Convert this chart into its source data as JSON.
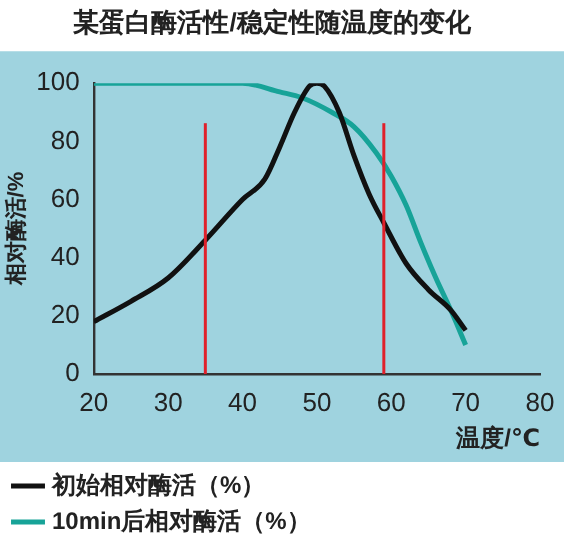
{
  "chart_data": {
    "type": "line",
    "title": "某蛋白酶活性/稳定性随温度的变化",
    "xlabel": "温度/℃",
    "ylabel": "相对酶活/%",
    "xlim": [
      20,
      80
    ],
    "xticks": [
      20,
      30,
      40,
      50,
      60,
      70,
      80
    ],
    "ylim": [
      0,
      100
    ],
    "yticks": [
      0,
      20,
      40,
      60,
      80,
      100
    ],
    "grid": false,
    "legend": "bottom",
    "marker": "none",
    "line_style": "solid",
    "series": [
      {
        "name": "初始相对酶活（%）",
        "color": "#111111",
        "x": [
          20,
          25,
          30,
          35,
          40,
          43,
          45,
          47,
          49,
          50,
          51,
          53,
          55,
          57,
          59,
          62,
          65,
          68,
          70
        ],
        "values": [
          18,
          25,
          33,
          46,
          60,
          67,
          78,
          90,
          99,
          100,
          99,
          90,
          75,
          62,
          52,
          38,
          29,
          22,
          15
        ]
      },
      {
        "name": "10min后相对酶活（%）",
        "color": "#17a398",
        "x": [
          20,
          30,
          40,
          45,
          48,
          52,
          55,
          58,
          60,
          62,
          64,
          66,
          68,
          70
        ],
        "values": [
          100,
          100,
          100,
          97,
          95,
          90,
          85,
          76,
          68,
          58,
          45,
          33,
          22,
          10
        ]
      }
    ],
    "ref_lines": [
      {
        "axis": "x",
        "value": 35,
        "color": "#e0202a"
      },
      {
        "axis": "x",
        "value": 59,
        "color": "#e0202a"
      }
    ]
  }
}
